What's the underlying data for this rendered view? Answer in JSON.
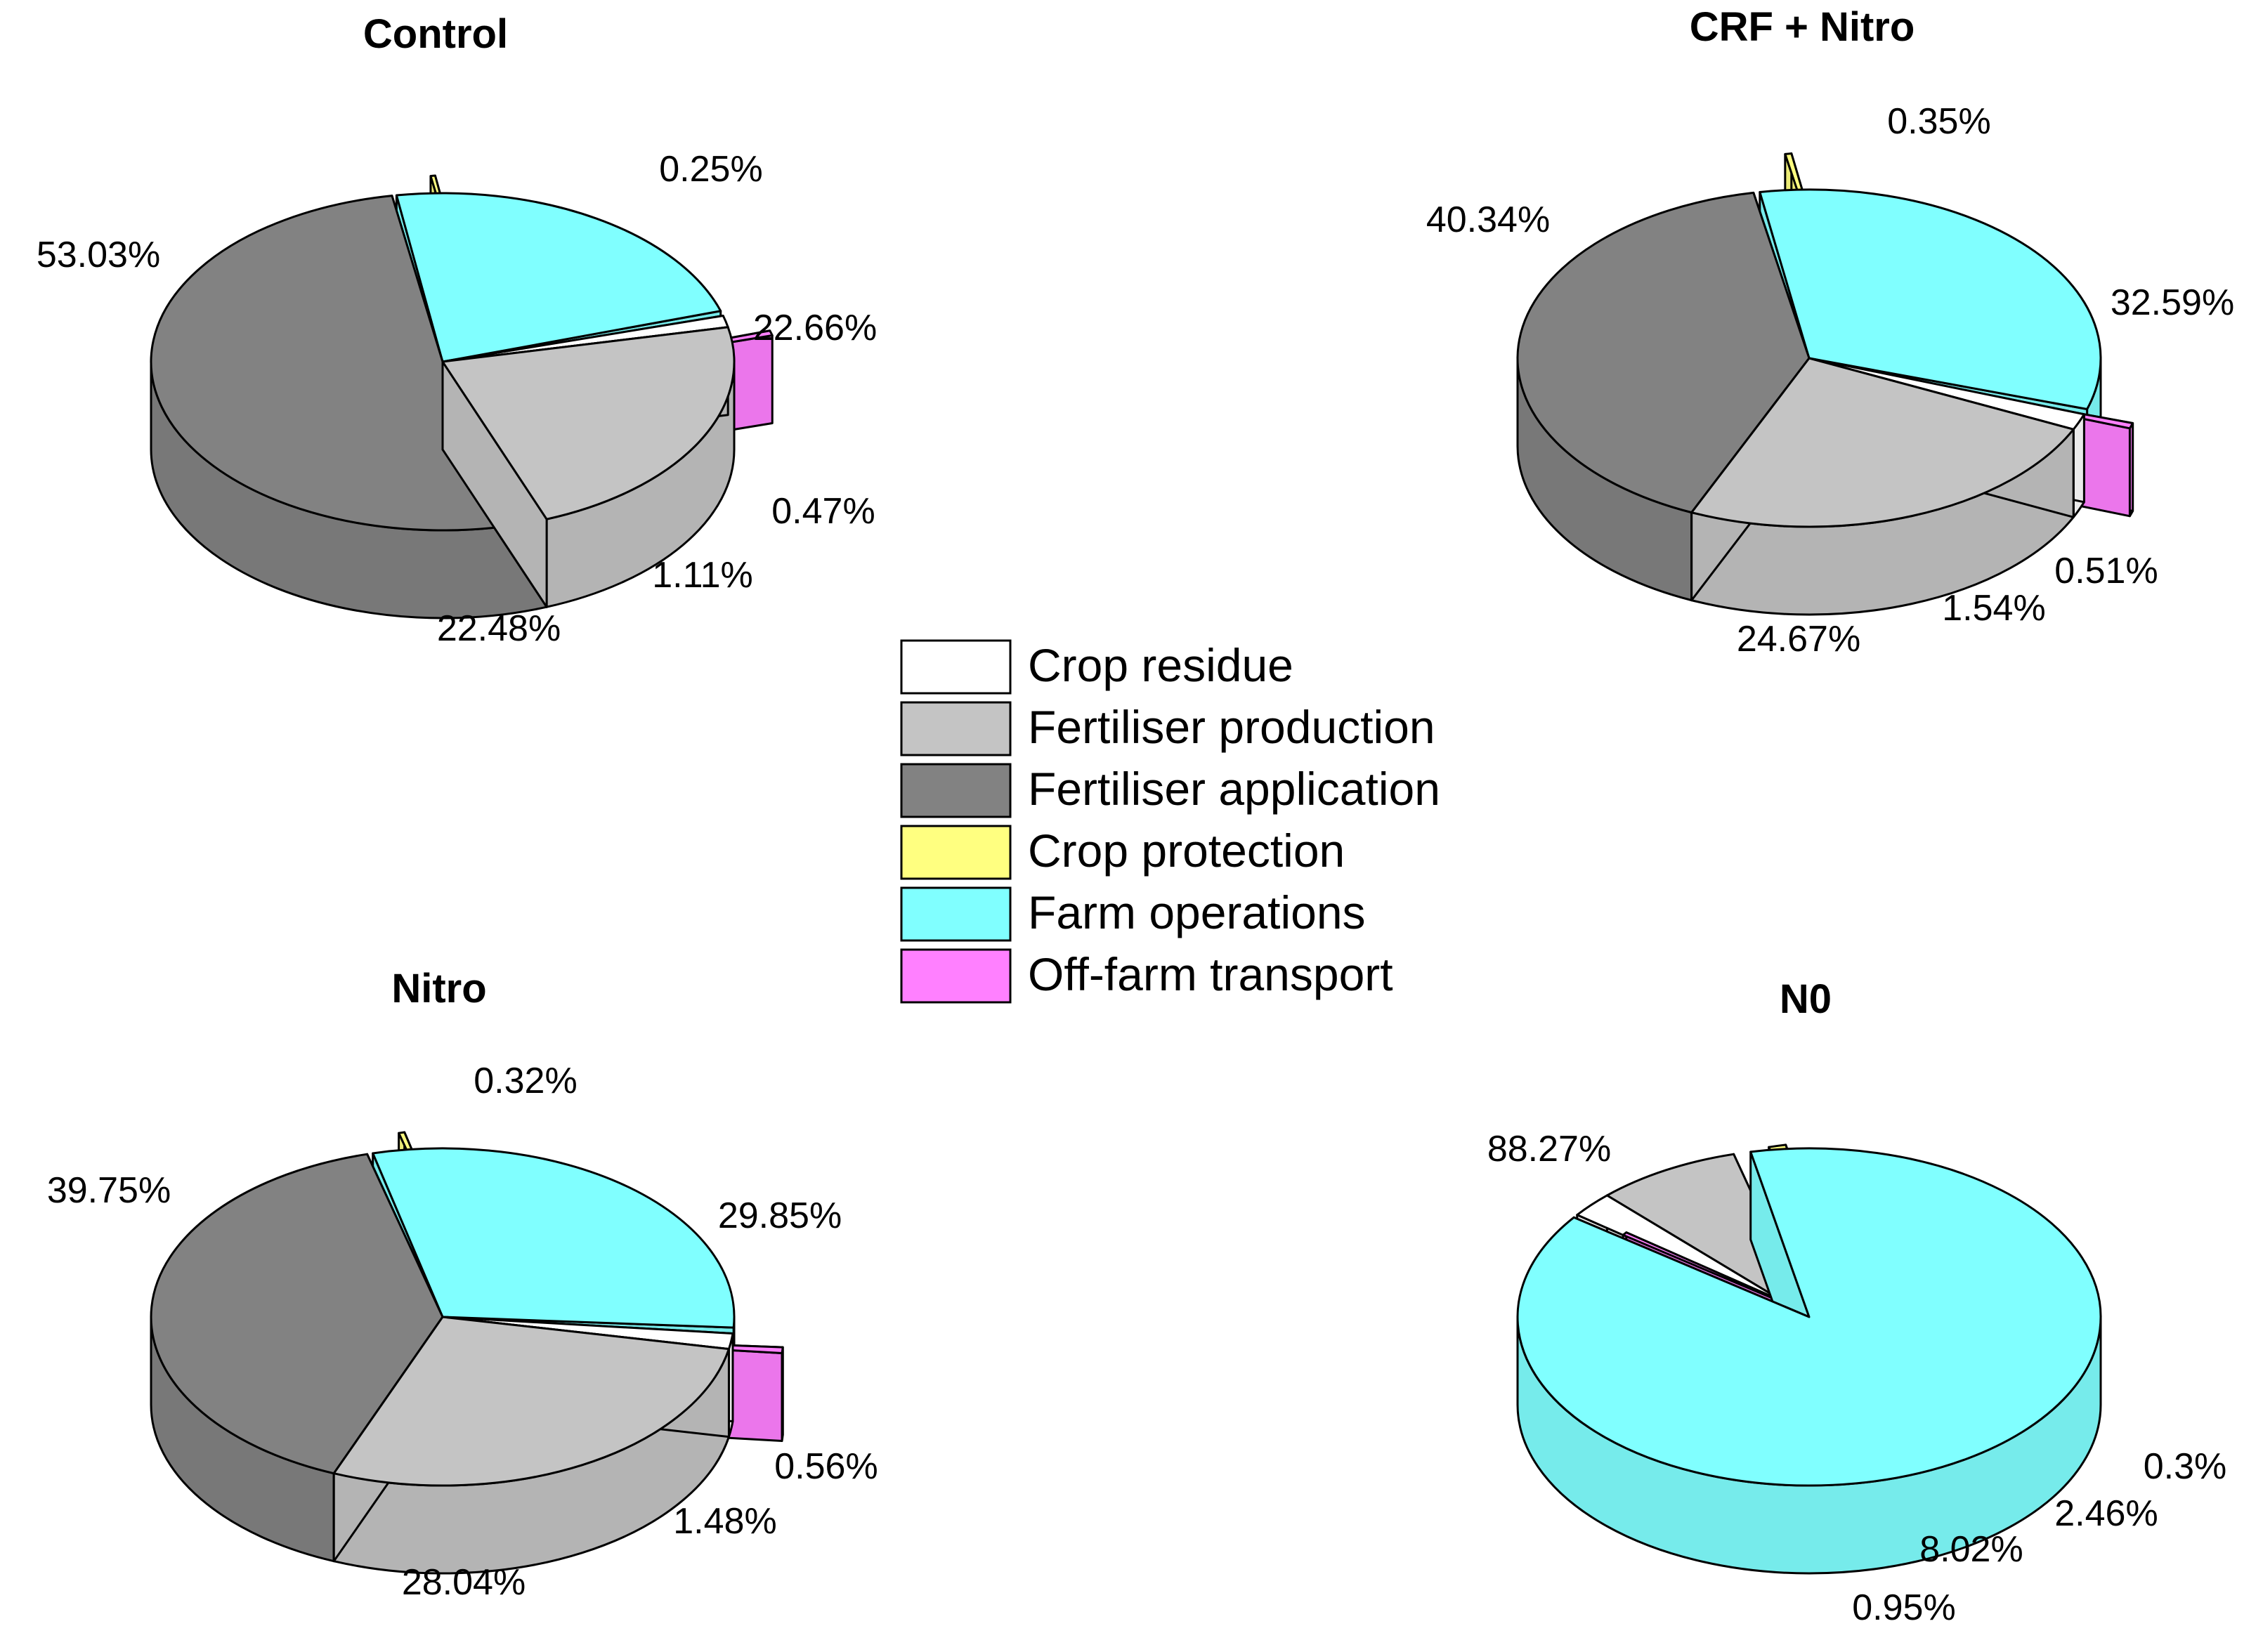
{
  "chart_data": {
    "type": "pie",
    "style": "3d-exploded",
    "categories": [
      "Crop residue",
      "Fertiliser production",
      "Fertiliser application",
      "Crop protection",
      "Farm operations",
      "Off-farm transport"
    ],
    "colors": [
      "#ffffff",
      "#c4c4c4",
      "#828282",
      "#ffff80",
      "#80ffff",
      "#ff80ff"
    ],
    "legend": {
      "placement": "center",
      "entries": [
        "Crop residue",
        "Fertiliser production",
        "Fertiliser application",
        "Crop protection",
        "Farm operations",
        "Off-farm transport"
      ]
    },
    "charts": [
      {
        "title": "Control",
        "slices": [
          {
            "name": "Crop residue",
            "value": 1.11,
            "label": "1.11%"
          },
          {
            "name": "Fertiliser production",
            "value": 22.48,
            "label": "22.48%"
          },
          {
            "name": "Fertiliser application",
            "value": 53.03,
            "label": "53.03%"
          },
          {
            "name": "Crop protection",
            "value": 0.25,
            "label": "0.25%"
          },
          {
            "name": "Farm operations",
            "value": 22.66,
            "label": "22.66%"
          },
          {
            "name": "Off-farm transport",
            "value": 0.47,
            "label": "0.47%"
          }
        ]
      },
      {
        "title": "CRF + Nitro",
        "slices": [
          {
            "name": "Crop residue",
            "value": 1.54,
            "label": "1.54%"
          },
          {
            "name": "Fertiliser production",
            "value": 24.67,
            "label": "24.67%"
          },
          {
            "name": "Fertiliser application",
            "value": 40.34,
            "label": "40.34%"
          },
          {
            "name": "Crop protection",
            "value": 0.35,
            "label": "0.35%"
          },
          {
            "name": "Farm operations",
            "value": 32.59,
            "label": "32.59%"
          },
          {
            "name": "Off-farm transport",
            "value": 0.51,
            "label": "0.51%"
          }
        ]
      },
      {
        "title": "Nitro",
        "slices": [
          {
            "name": "Crop residue",
            "value": 1.48,
            "label": "1.48%"
          },
          {
            "name": "Fertiliser production",
            "value": 28.04,
            "label": "28.04%"
          },
          {
            "name": "Fertiliser application",
            "value": 39.75,
            "label": "39.75%"
          },
          {
            "name": "Crop protection",
            "value": 0.32,
            "label": "0.32%"
          },
          {
            "name": "Farm operations",
            "value": 29.85,
            "label": "29.85%"
          },
          {
            "name": "Off-farm transport",
            "value": 0.56,
            "label": "0.56%"
          }
        ]
      },
      {
        "title": "N0",
        "slices": [
          {
            "name": "Crop residue",
            "value": 2.46,
            "label": "2.46%"
          },
          {
            "name": "Fertiliser production",
            "value": 8.02,
            "label": "8.02%"
          },
          {
            "name": "Fertiliser application",
            "value": 0,
            "label": ""
          },
          {
            "name": "Crop protection",
            "value": 0.95,
            "label": "0.95%"
          },
          {
            "name": "Farm operations",
            "value": 88.27,
            "label": "88.27%"
          },
          {
            "name": "Off-farm transport",
            "value": 0.3,
            "label": "0.3%"
          }
        ]
      }
    ]
  }
}
